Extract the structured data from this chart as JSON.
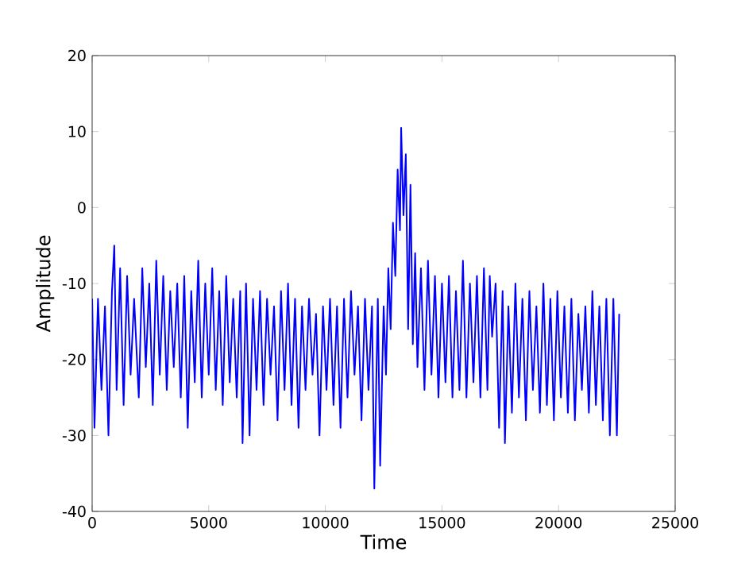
{
  "chart_data": {
    "type": "line",
    "xlabel": "Time",
    "ylabel": "Amplitude",
    "color": "#0000ff",
    "xlim": [
      0,
      25000
    ],
    "ylim": [
      -40,
      20
    ],
    "xticks": [
      0,
      5000,
      10000,
      15000,
      20000,
      25000
    ],
    "yticks": [
      -40,
      -30,
      -20,
      -10,
      0,
      10,
      20
    ],
    "x": [
      0,
      100,
      250,
      400,
      550,
      700,
      850,
      950,
      1050,
      1200,
      1350,
      1500,
      1650,
      1800,
      2000,
      2150,
      2300,
      2450,
      2600,
      2750,
      2900,
      3050,
      3200,
      3350,
      3500,
      3650,
      3800,
      3950,
      4100,
      4250,
      4400,
      4550,
      4700,
      4850,
      5000,
      5150,
      5300,
      5450,
      5600,
      5750,
      5900,
      6050,
      6200,
      6350,
      6450,
      6600,
      6750,
      6900,
      7050,
      7200,
      7350,
      7500,
      7650,
      7800,
      7950,
      8100,
      8250,
      8400,
      8550,
      8700,
      8850,
      9000,
      9150,
      9300,
      9450,
      9600,
      9750,
      9900,
      10050,
      10200,
      10350,
      10500,
      10650,
      10800,
      10950,
      11100,
      11250,
      11400,
      11550,
      11700,
      11850,
      12000,
      12100,
      12250,
      12350,
      12500,
      12600,
      12700,
      12800,
      12900,
      13000,
      13100,
      13200,
      13250,
      13350,
      13450,
      13550,
      13650,
      13750,
      13850,
      13950,
      14100,
      14250,
      14400,
      14550,
      14700,
      14850,
      15000,
      15150,
      15300,
      15450,
      15600,
      15750,
      15900,
      16050,
      16200,
      16350,
      16500,
      16650,
      16800,
      16950,
      17050,
      17150,
      17300,
      17450,
      17600,
      17700,
      17850,
      18000,
      18150,
      18300,
      18450,
      18600,
      18750,
      18900,
      19050,
      19200,
      19350,
      19500,
      19650,
      19800,
      19950,
      20100,
      20250,
      20400,
      20550,
      20700,
      20850,
      21000,
      21150,
      21300,
      21450,
      21600,
      21750,
      21900,
      22050,
      22200,
      22350,
      22500,
      22600
    ],
    "values": [
      -12,
      -29,
      -12,
      -24,
      -13,
      -30,
      -11,
      -5,
      -24,
      -8,
      -26,
      -9,
      -22,
      -12,
      -25,
      -8,
      -21,
      -10,
      -26,
      -7,
      -22,
      -9,
      -24,
      -11,
      -21,
      -10,
      -25,
      -9,
      -29,
      -11,
      -23,
      -7,
      -25,
      -10,
      -22,
      -8,
      -24,
      -11,
      -26,
      -9,
      -23,
      -12,
      -25,
      -11,
      -31,
      -10,
      -30,
      -12,
      -24,
      -11,
      -26,
      -12,
      -22,
      -13,
      -28,
      -11,
      -24,
      -10,
      -26,
      -12,
      -29,
      -13,
      -24,
      -12,
      -22,
      -14,
      -30,
      -13,
      -24,
      -12,
      -26,
      -13,
      -29,
      -12,
      -25,
      -11,
      -22,
      -13,
      -28,
      -12,
      -24,
      -13,
      -37,
      -12,
      -34,
      -13,
      -22,
      -8,
      -16,
      -2,
      -9,
      5,
      -3,
      10.5,
      -1,
      7,
      -16,
      3,
      -18,
      -6,
      -21,
      -8,
      -24,
      -7,
      -22,
      -9,
      -25,
      -10,
      -23,
      -9,
      -25,
      -11,
      -24,
      -7,
      -25,
      -10,
      -23,
      -9,
      -25,
      -8,
      -24,
      -9,
      -17,
      -10,
      -29,
      -11,
      -31,
      -13,
      -27,
      -10,
      -25,
      -12,
      -28,
      -11,
      -24,
      -13,
      -27,
      -10,
      -26,
      -12,
      -28,
      -11,
      -25,
      -13,
      -27,
      -12,
      -28,
      -14,
      -24,
      -13,
      -27,
      -11,
      -26,
      -13,
      -28,
      -12,
      -30,
      -12,
      -30,
      -14
    ]
  }
}
